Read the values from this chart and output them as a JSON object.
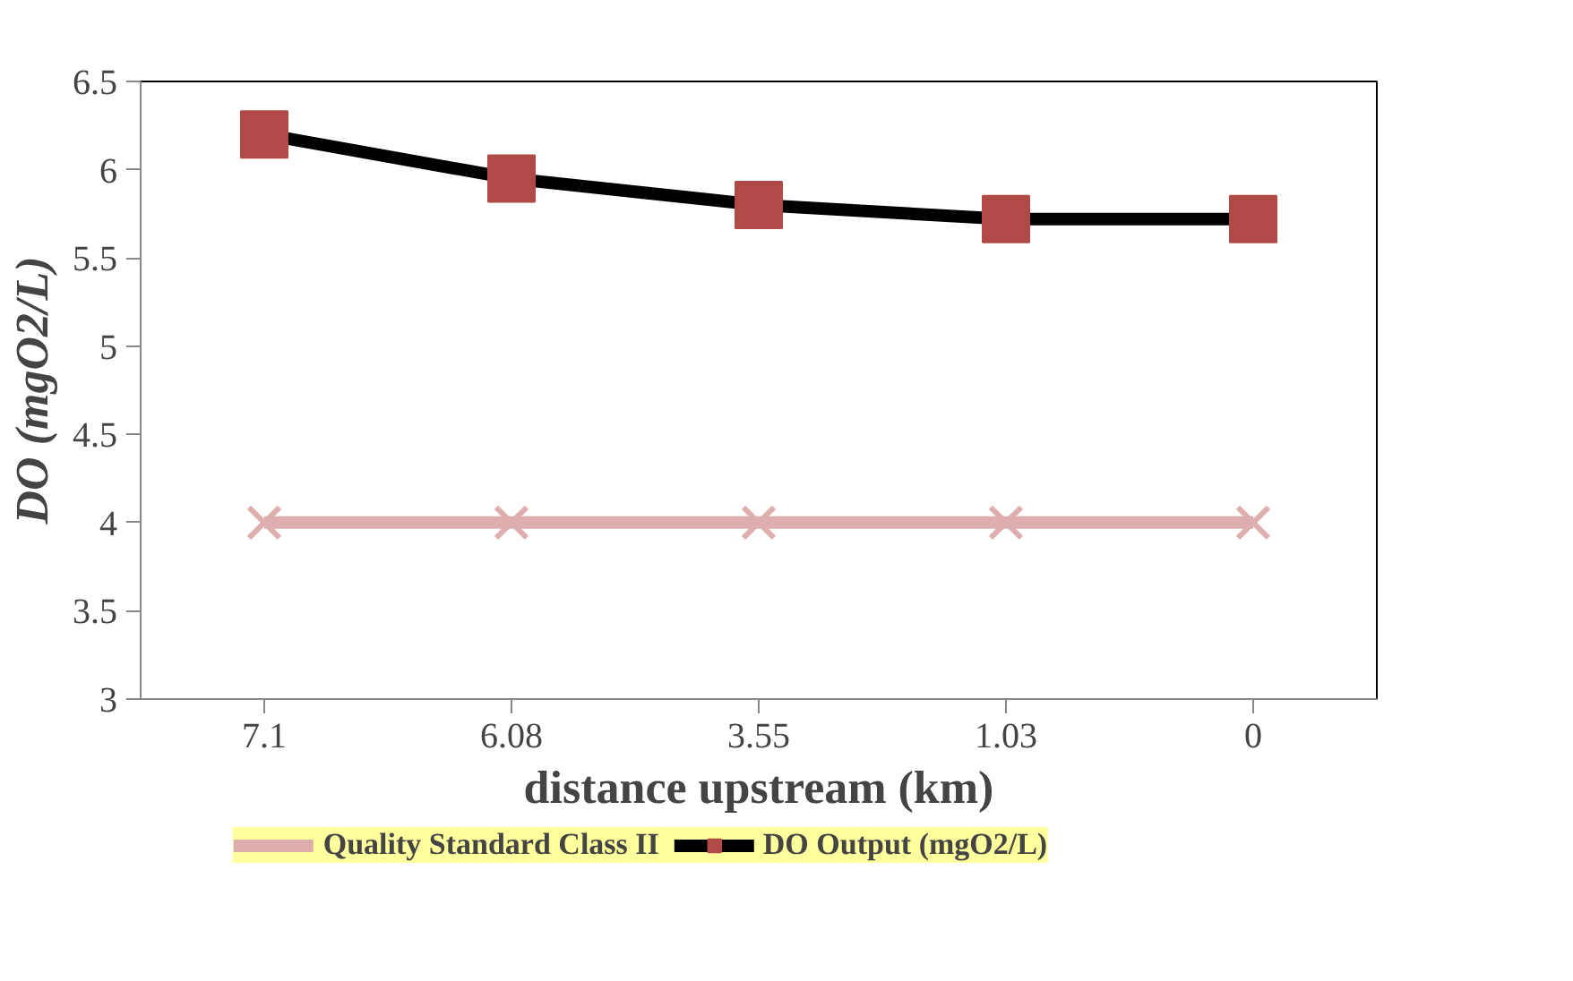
{
  "chart_data": {
    "type": "line",
    "xlabel": "distance upstream (km)",
    "ylabel": "DO (mgO2/L)",
    "categories": [
      "7.1",
      "6.08",
      "3.55",
      "1.03",
      "0"
    ],
    "series": [
      {
        "name": "Quality Standard Class II",
        "color": "#deaeae",
        "marker": "cross",
        "values": [
          4,
          4,
          4,
          4,
          4
        ]
      },
      {
        "name": "DO Output (mgO2/L)",
        "color": "#000000",
        "marker": "square",
        "colors": [
          "#b04a46",
          "#b04a46",
          "#b04a46",
          "#b04a46",
          "#b04a46"
        ],
        "values": [
          6.2,
          5.95,
          5.8,
          5.72,
          5.72
        ]
      }
    ],
    "ylim": [
      3,
      6.5
    ],
    "yticks": [
      3,
      3.5,
      4,
      4.5,
      5,
      5.5,
      6,
      6.5
    ],
    "grid": false,
    "legend": "bottom",
    "line_style": "solid"
  }
}
